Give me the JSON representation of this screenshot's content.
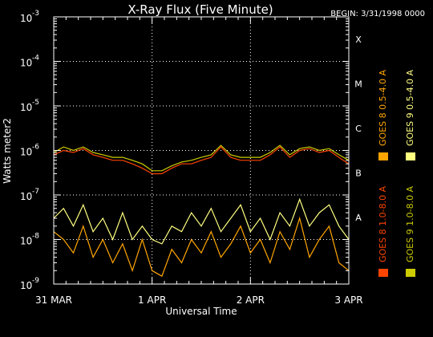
{
  "chart_data": {
    "type": "line",
    "title": "X-Ray Flux (Five Minute)",
    "begin_label": "BEGIN: 3/31/1998 0000",
    "xlabel": "Universal Time",
    "ylabel": "Watts meter2",
    "y_scale": "log",
    "ylim": [
      1e-09,
      0.001
    ],
    "y_ticks": [
      {
        "base": "10",
        "exp": "-3"
      },
      {
        "base": "10",
        "exp": "-4"
      },
      {
        "base": "10",
        "exp": "-5"
      },
      {
        "base": "10",
        "exp": "-6"
      },
      {
        "base": "10",
        "exp": "-7"
      },
      {
        "base": "10",
        "exp": "-8"
      },
      {
        "base": "10",
        "exp": "-9"
      }
    ],
    "x_unit": "days since 31 MAR 1998 00:00 UT",
    "xlim": [
      0,
      3
    ],
    "x_ticks": [
      {
        "value": 0,
        "label": "31 MAR"
      },
      {
        "value": 1,
        "label": "1 APR"
      },
      {
        "value": 2,
        "label": "2 APR"
      },
      {
        "value": 3,
        "label": "3 APR"
      }
    ],
    "flare_classes": [
      {
        "label": "X",
        "flux": 0.0001
      },
      {
        "label": "M",
        "flux": 1e-05
      },
      {
        "label": "C",
        "flux": 1e-06
      },
      {
        "label": "B",
        "flux": 1e-07
      },
      {
        "label": "A",
        "flux": 1e-08
      }
    ],
    "grid": true,
    "legend_position": "right, vertical",
    "series": [
      {
        "name": "GOES 8 1.0-8.0 A",
        "color": "#ff4500",
        "x": [
          0,
          0.1,
          0.2,
          0.3,
          0.4,
          0.5,
          0.6,
          0.7,
          0.8,
          0.9,
          1.0,
          1.1,
          1.2,
          1.3,
          1.4,
          1.5,
          1.6,
          1.7,
          1.8,
          1.9,
          2.0,
          2.1,
          2.2,
          2.3,
          2.4,
          2.5,
          2.6,
          2.7,
          2.8,
          2.9,
          3.0
        ],
        "y": [
          8e-07,
          1e-06,
          9e-07,
          1.1e-06,
          8e-07,
          7e-07,
          6e-07,
          6e-07,
          5e-07,
          4e-07,
          3e-07,
          3e-07,
          4e-07,
          5e-07,
          5e-07,
          6e-07,
          7e-07,
          1.2e-06,
          7e-07,
          6e-07,
          6e-07,
          6e-07,
          8e-07,
          1.2e-06,
          7e-07,
          1e-06,
          1.1e-06,
          9e-07,
          1e-06,
          7e-07,
          5e-07
        ]
      },
      {
        "name": "GOES 8 0.5-4.0 A",
        "color": "#ffa500",
        "x": [
          0,
          0.1,
          0.2,
          0.3,
          0.4,
          0.5,
          0.6,
          0.7,
          0.8,
          0.9,
          1.0,
          1.1,
          1.2,
          1.3,
          1.4,
          1.5,
          1.6,
          1.7,
          1.8,
          1.9,
          2.0,
          2.1,
          2.2,
          2.3,
          2.4,
          2.5,
          2.6,
          2.7,
          2.8,
          2.9,
          3.0
        ],
        "y": [
          1.5e-08,
          1e-08,
          5e-09,
          2e-08,
          4e-09,
          1e-08,
          3e-09,
          8e-09,
          2e-09,
          1e-08,
          2e-09,
          1.5e-09,
          6e-09,
          3e-09,
          1e-08,
          5e-09,
          1.5e-08,
          4e-09,
          8e-09,
          2e-08,
          5e-09,
          1e-08,
          3e-09,
          1.5e-08,
          6e-09,
          3e-08,
          4e-09,
          1e-08,
          2e-08,
          3e-09,
          2e-09
        ]
      },
      {
        "name": "GOES 9 0.5-4.0 A",
        "color": "#ffff80",
        "x": [
          0,
          0.1,
          0.2,
          0.3,
          0.4,
          0.5,
          0.6,
          0.7,
          0.8,
          0.9,
          1.0,
          1.1,
          1.2,
          1.3,
          1.4,
          1.5,
          1.6,
          1.7,
          1.8,
          1.9,
          2.0,
          2.1,
          2.2,
          2.3,
          2.4,
          2.5,
          2.6,
          2.7,
          2.8,
          2.9,
          3.0
        ],
        "y": [
          3e-08,
          5e-08,
          2e-08,
          6e-08,
          1.5e-08,
          3e-08,
          1e-08,
          4e-08,
          1e-08,
          2e-08,
          1e-08,
          8e-09,
          2e-08,
          1.5e-08,
          4e-08,
          2e-08,
          5e-08,
          1.5e-08,
          3e-08,
          6e-08,
          1.5e-08,
          3e-08,
          1e-08,
          4e-08,
          2e-08,
          8e-08,
          2e-08,
          4e-08,
          6e-08,
          2e-08,
          1e-08
        ]
      },
      {
        "name": "GOES 9 1.0-8.0 A",
        "color": "#cccc00",
        "x": [
          0,
          0.1,
          0.2,
          0.3,
          0.4,
          0.5,
          0.6,
          0.7,
          0.8,
          0.9,
          1.0,
          1.1,
          1.2,
          1.3,
          1.4,
          1.5,
          1.6,
          1.7,
          1.8,
          1.9,
          2.0,
          2.1,
          2.2,
          2.3,
          2.4,
          2.5,
          2.6,
          2.7,
          2.8,
          2.9,
          3.0
        ],
        "y": [
          9e-07,
          1.2e-06,
          1e-06,
          1.2e-06,
          9e-07,
          8e-07,
          7e-07,
          7e-07,
          6e-07,
          5e-07,
          3.5e-07,
          3.5e-07,
          4.5e-07,
          5.5e-07,
          6e-07,
          7e-07,
          8e-07,
          1.3e-06,
          8e-07,
          7e-07,
          7e-07,
          7e-07,
          9e-07,
          1.3e-06,
          8e-07,
          1.1e-06,
          1.2e-06,
          1e-06,
          1.1e-06,
          8e-07,
          6e-07
        ]
      }
    ]
  }
}
